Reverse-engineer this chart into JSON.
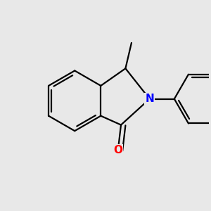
{
  "bg_color": "#e8e8e8",
  "bond_color": "#000000",
  "N_color": "#0000ff",
  "O_color": "#ff0000",
  "bond_width": 1.6,
  "dbo": 0.032,
  "font_size_atom": 11,
  "xlim": [
    -1.05,
    1.15
  ],
  "ylim": [
    -0.95,
    0.85
  ]
}
